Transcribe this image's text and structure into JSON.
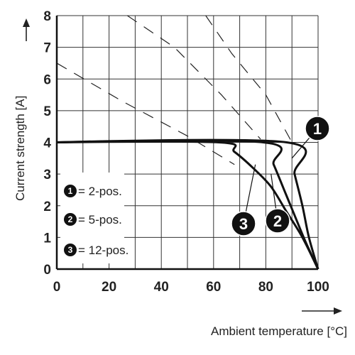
{
  "chart_data": {
    "type": "line",
    "xlabel": "Ambient temperature [°C]",
    "ylabel": "Current strength [A]",
    "xlim": [
      0,
      100
    ],
    "ylim": [
      0,
      8
    ],
    "x_ticks": [
      "0",
      "20",
      "40",
      "60",
      "80",
      "100"
    ],
    "y_ticks": [
      "0",
      "1",
      "2",
      "3",
      "4",
      "5",
      "6",
      "7",
      "8"
    ],
    "grid": true,
    "series": [
      {
        "name": "1",
        "points": [
          [
            0,
            4.0
          ],
          [
            88,
            4.0
          ],
          [
            91,
            3.0
          ],
          [
            94,
            2.0
          ],
          [
            96.5,
            1.0
          ],
          [
            100,
            0
          ]
        ]
      },
      {
        "name": "2",
        "points": [
          [
            0,
            4.0
          ],
          [
            79,
            4.0
          ],
          [
            83,
            3.3
          ],
          [
            87,
            2.5
          ],
          [
            91,
            1.7
          ],
          [
            95,
            0.9
          ],
          [
            100,
            0
          ]
        ]
      },
      {
        "name": "3",
        "points": [
          [
            0,
            4.0
          ],
          [
            62,
            4.0
          ],
          [
            68,
            3.7
          ],
          [
            75,
            3.2
          ],
          [
            82,
            2.6
          ],
          [
            88,
            1.8
          ],
          [
            94,
            1.0
          ],
          [
            100,
            0
          ]
        ]
      }
    ],
    "derating_lines": [
      [
        [
          0,
          6.5
        ],
        [
          25,
          5.3
        ],
        [
          50,
          4.2
        ],
        [
          68,
          3.3
        ]
      ],
      [
        [
          27,
          8.0
        ],
        [
          45,
          7.0
        ],
        [
          63,
          5.5
        ],
        [
          78,
          4.1
        ]
      ],
      [
        [
          57,
          8.0
        ],
        [
          67,
          6.8
        ],
        [
          80,
          5.5
        ],
        [
          90,
          4.0
        ]
      ]
    ],
    "legend": {
      "placement": "bottom-left",
      "items": [
        {
          "badge": "1",
          "text": "= 2-pos."
        },
        {
          "badge": "2",
          "text": "= 5-pos."
        },
        {
          "badge": "3",
          "text": "= 12-pos."
        }
      ]
    },
    "callouts": [
      {
        "label": "1",
        "target": [
          90,
          3.5
        ]
      },
      {
        "label": "2",
        "target": [
          82,
          3.0
        ]
      },
      {
        "label": "3",
        "target": [
          76,
          3.3
        ]
      }
    ]
  }
}
